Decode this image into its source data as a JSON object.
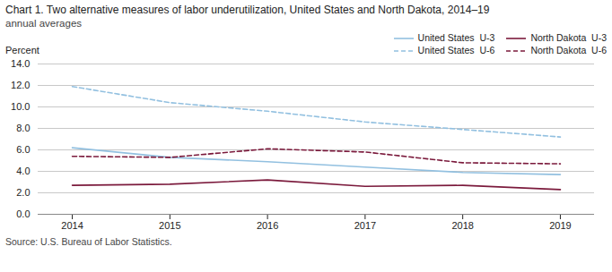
{
  "chart_data": {
    "type": "line",
    "title": "Chart 1. Two alternative measures of labor underutilization, United States and North Dakota, 2014–19",
    "subtitle": "annual averages",
    "ylabel": "Percent",
    "source": "Source: U.S. Bureau of Labor Statistics.",
    "x": [
      2014,
      2015,
      2016,
      2017,
      2018,
      2019
    ],
    "series": [
      {
        "name": "United States  U-3",
        "color": "#92c0e0",
        "line_style": "solid",
        "values": [
          6.2,
          5.3,
          4.9,
          4.4,
          3.9,
          3.7
        ]
      },
      {
        "name": "United States  U-6",
        "color": "#92c0e0",
        "line_style": "dashed",
        "values": [
          11.9,
          10.4,
          9.6,
          8.6,
          7.9,
          7.2
        ]
      },
      {
        "name": "North Dakota  U-3",
        "color": "#7b1a3c",
        "line_style": "solid",
        "values": [
          2.7,
          2.8,
          3.2,
          2.6,
          2.7,
          2.3
        ]
      },
      {
        "name": "North Dakota  U-6",
        "color": "#7b1a3c",
        "line_style": "dashed",
        "values": [
          5.4,
          5.3,
          6.1,
          5.8,
          4.8,
          4.7
        ]
      }
    ],
    "xlim": [
      2013.65,
      2019.35
    ],
    "xticks": [
      2014,
      2015,
      2016,
      2017,
      2018,
      2019
    ],
    "ylim": [
      0.0,
      14.0
    ],
    "yticks": [
      {
        "value": 0.0,
        "label": "0.0"
      },
      {
        "value": 2.0,
        "label": "2.0"
      },
      {
        "value": 4.0,
        "label": "4.0"
      },
      {
        "value": 6.0,
        "label": "6.0"
      },
      {
        "value": 8.0,
        "label": "8.0"
      },
      {
        "value": 10.0,
        "label": "10.0"
      },
      {
        "value": 12.0,
        "label": "12.0"
      },
      {
        "value": 14.0,
        "label": "14.0"
      }
    ],
    "grid": true,
    "legend": "upper right"
  }
}
